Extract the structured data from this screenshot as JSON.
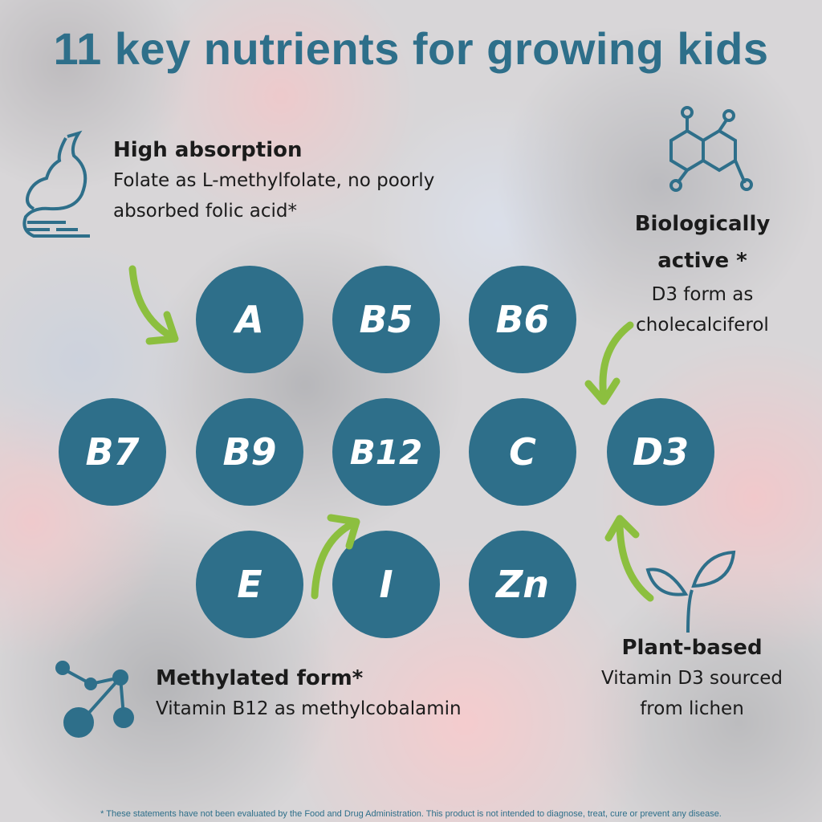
{
  "title": "11 key nutrients for growing kids",
  "nutrients": [
    "A",
    "B5",
    "B6",
    "B7",
    "B9",
    "B12",
    "C",
    "D3",
    "E",
    "I",
    "Zn"
  ],
  "features": {
    "absorption": {
      "heading": "High absorption",
      "line1": "Folate as L-methylfolate, no poorly",
      "line2": "absorbed folic acid*",
      "icon": "stomach-icon"
    },
    "active": {
      "heading1": "Biologically",
      "heading2": "active *",
      "line1": "D3 form as",
      "line2": "cholecalciferol",
      "icon": "molecule-icon"
    },
    "methylated": {
      "heading": "Methylated form*",
      "line1": "Vitamin B12 as methylcobalamin",
      "icon": "molecule-nodes-icon"
    },
    "plant": {
      "heading": "Plant-based",
      "line1": "Vitamin D3 sourced",
      "line2": "from lichen",
      "icon": "sprout-icon"
    }
  },
  "footer": "* These statements have not been evaluated by the Food and Drug Administration. This product is not intended to diagnose, treat, cure or prevent any disease.",
  "colors": {
    "accent": "#2e6f8a",
    "arrow": "#8cbf3f"
  }
}
